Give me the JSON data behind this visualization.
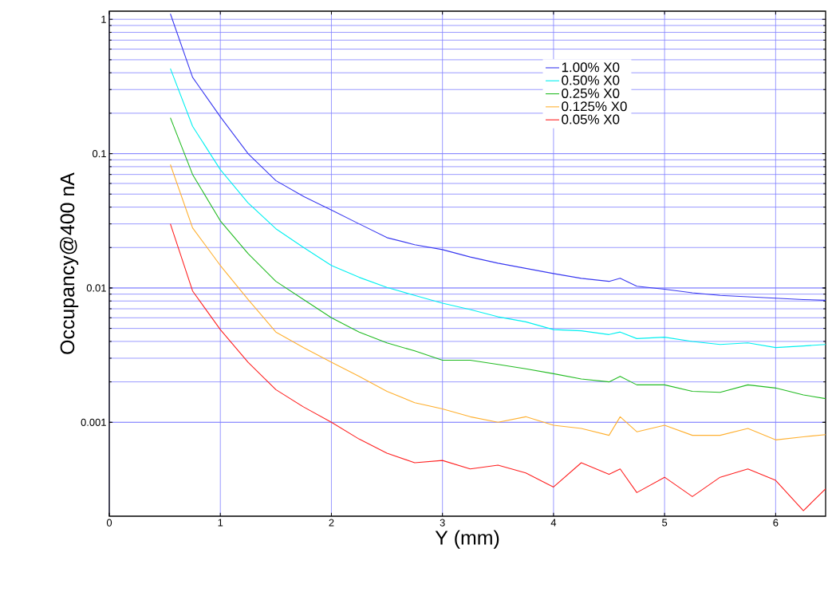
{
  "chart_data": {
    "type": "line",
    "xlabel": "Y (mm)",
    "ylabel": "Occupancy@400 nA",
    "log": "y",
    "grid": true,
    "legend": "top right",
    "marker": "none",
    "line_style": "solid",
    "xlim": [
      0,
      6.45
    ],
    "ylim": [
      0.0002,
      1.15
    ],
    "xticks": [
      0,
      1,
      2,
      3,
      4,
      5,
      6
    ],
    "yticks": [
      0.001,
      0.01,
      0.1,
      1
    ],
    "x": [
      0.55,
      0.75,
      1,
      1.25,
      1.5,
      1.75,
      2,
      2.25,
      2.5,
      2.75,
      3,
      3.25,
      3.5,
      3.75,
      4,
      4.25,
      4.5,
      4.6,
      4.75,
      5,
      5.25,
      5.5,
      5.75,
      6,
      6.25,
      6.45
    ],
    "series": [
      {
        "name": "1.00% X0",
        "color": "#3838f0",
        "values": [
          1.1,
          0.37,
          0.188,
          0.1,
          0.063,
          0.048,
          0.038,
          0.03,
          0.0237,
          0.021,
          0.0193,
          0.017,
          0.0153,
          0.014,
          0.0128,
          0.0118,
          0.0112,
          0.0118,
          0.0103,
          0.0098,
          0.0092,
          0.0088,
          0.0086,
          0.0084,
          0.0082,
          0.0081
        ]
      },
      {
        "name": "0.50% X0",
        "color": "#00f0f0",
        "values": [
          0.43,
          0.16,
          0.076,
          0.043,
          0.0276,
          0.02,
          0.0147,
          0.012,
          0.0101,
          0.0088,
          0.0077,
          0.0069,
          0.0061,
          0.0056,
          0.0049,
          0.0048,
          0.0045,
          0.0047,
          0.0042,
          0.0043,
          0.004,
          0.0038,
          0.0039,
          0.0036,
          0.0037,
          0.0038
        ]
      },
      {
        "name": "0.25% X0",
        "color": "#22bb22",
        "values": [
          0.185,
          0.07,
          0.0316,
          0.018,
          0.0112,
          0.0082,
          0.006,
          0.0047,
          0.0039,
          0.0034,
          0.0029,
          0.0029,
          0.0027,
          0.0025,
          0.0023,
          0.0021,
          0.002,
          0.0022,
          0.0019,
          0.0019,
          0.0017,
          0.00167,
          0.0019,
          0.0018,
          0.0016,
          0.0015
        ]
      },
      {
        "name": "0.125% X0",
        "color": "#ffb030",
        "values": [
          0.083,
          0.028,
          0.0147,
          0.0082,
          0.0047,
          0.0036,
          0.0028,
          0.0022,
          0.0017,
          0.0014,
          0.00126,
          0.0011,
          0.001,
          0.0011,
          0.00095,
          0.0009,
          0.0008,
          0.0011,
          0.00085,
          0.00095,
          0.0008,
          0.0008,
          0.0009,
          0.00074,
          0.00078,
          0.00081
        ]
      },
      {
        "name": "0.05% X0",
        "color": "#ff2020",
        "values": [
          0.03,
          0.0095,
          0.0049,
          0.0028,
          0.00175,
          0.0013,
          0.001,
          0.00075,
          0.00059,
          0.0005,
          0.00052,
          0.00045,
          0.00048,
          0.00042,
          0.00033,
          0.0005,
          0.00041,
          0.00045,
          0.0003,
          0.00039,
          0.00028,
          0.00039,
          0.00045,
          0.00037,
          0.00022,
          0.00032
        ]
      }
    ]
  }
}
